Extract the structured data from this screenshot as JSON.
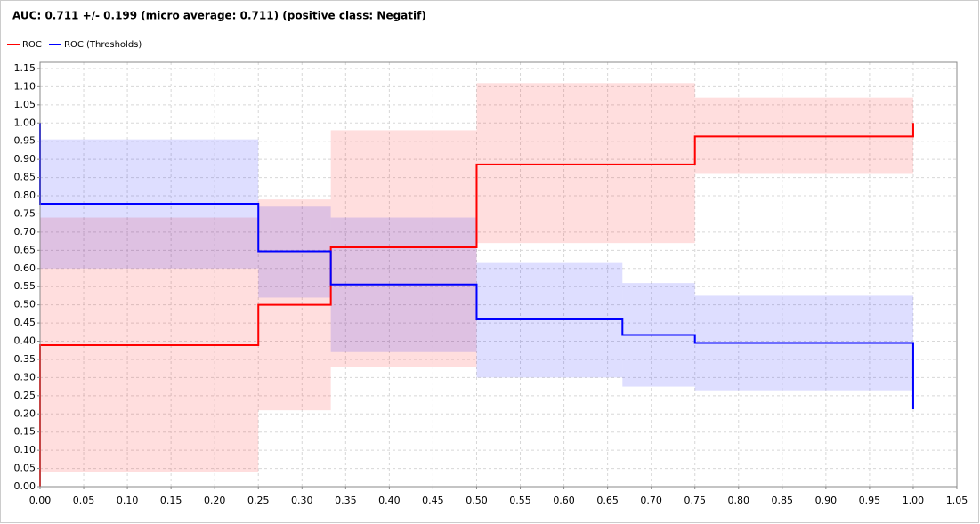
{
  "chart_data": {
    "type": "step",
    "title": "AUC: 0.711 +/- 0.199 (micro average: 0.711) (positive class: Negatif)",
    "xlim": [
      0,
      1.05
    ],
    "ylim": [
      0,
      1.167
    ],
    "grid": true,
    "xticks": [
      {
        "value": 0,
        "label": "0.00"
      },
      {
        "value": 0.05,
        "label": "0.05"
      },
      {
        "value": 0.1,
        "label": "0.10"
      },
      {
        "value": 0.15,
        "label": "0.15"
      },
      {
        "value": 0.2,
        "label": "0.20"
      },
      {
        "value": 0.25,
        "label": "0.25"
      },
      {
        "value": 0.3,
        "label": "0.30"
      },
      {
        "value": 0.35,
        "label": "0.35"
      },
      {
        "value": 0.4,
        "label": "0.40"
      },
      {
        "value": 0.45,
        "label": "0.45"
      },
      {
        "value": 0.5,
        "label": "0.50"
      },
      {
        "value": 0.55,
        "label": "0.55"
      },
      {
        "value": 0.6,
        "label": "0.60"
      },
      {
        "value": 0.65,
        "label": "0.65"
      },
      {
        "value": 0.7,
        "label": "0.70"
      },
      {
        "value": 0.75,
        "label": "0.75"
      },
      {
        "value": 0.8,
        "label": "0.80"
      },
      {
        "value": 0.85,
        "label": "0.85"
      },
      {
        "value": 0.9,
        "label": "0.90"
      },
      {
        "value": 0.95,
        "label": "0.95"
      },
      {
        "value": 1,
        "label": "1.00"
      },
      {
        "value": 1.05,
        "label": "1.05"
      }
    ],
    "yticks": [
      {
        "value": 0,
        "label": "0.00"
      },
      {
        "value": 0.05,
        "label": "0.05"
      },
      {
        "value": 0.1,
        "label": "0.10"
      },
      {
        "value": 0.15,
        "label": "0.15"
      },
      {
        "value": 0.2,
        "label": "0.20"
      },
      {
        "value": 0.25,
        "label": "0.25"
      },
      {
        "value": 0.3,
        "label": "0.30"
      },
      {
        "value": 0.35,
        "label": "0.35"
      },
      {
        "value": 0.4,
        "label": "0.40"
      },
      {
        "value": 0.45,
        "label": "0.45"
      },
      {
        "value": 0.5,
        "label": "0.50"
      },
      {
        "value": 0.55,
        "label": "0.55"
      },
      {
        "value": 0.6,
        "label": "0.60"
      },
      {
        "value": 0.65,
        "label": "0.65"
      },
      {
        "value": 0.7,
        "label": "0.70"
      },
      {
        "value": 0.75,
        "label": "0.75"
      },
      {
        "value": 0.8,
        "label": "0.80"
      },
      {
        "value": 0.85,
        "label": "0.85"
      },
      {
        "value": 0.9,
        "label": "0.90"
      },
      {
        "value": 0.95,
        "label": "0.95"
      },
      {
        "value": 1,
        "label": "1.00"
      },
      {
        "value": 1.05,
        "label": "1.05"
      },
      {
        "value": 1.1,
        "label": "1.10"
      },
      {
        "value": 1.15,
        "label": "1.15"
      }
    ],
    "series": [
      {
        "name": "ROC",
        "color": "#ff0000",
        "x": [
          0,
          0,
          0.25,
          0.25,
          0.333,
          0.333,
          0.5,
          0.5,
          0.75,
          0.75,
          1,
          1
        ],
        "values": [
          0,
          0.389,
          0.389,
          0.5,
          0.5,
          0.658,
          0.658,
          0.886,
          0.886,
          0.963,
          0.963,
          1
        ],
        "band_x": [
          0,
          0.25,
          0.333,
          0.5,
          0.75,
          1
        ],
        "band_lower": [
          0.04,
          0.21,
          0.33,
          0.67,
          0.86
        ],
        "band_upper": [
          0.74,
          0.79,
          0.98,
          1.11,
          1.07
        ]
      },
      {
        "name": "ROC (Thresholds)",
        "color": "#0000ff",
        "x": [
          0,
          0,
          0.25,
          0.25,
          0.333,
          0.333,
          0.5,
          0.5,
          0.667,
          0.667,
          0.75,
          0.75,
          1,
          1
        ],
        "values": [
          1,
          0.778,
          0.778,
          0.647,
          0.647,
          0.556,
          0.556,
          0.46,
          0.46,
          0.417,
          0.417,
          0.395,
          0.395,
          0.213
        ],
        "band_x": [
          0,
          0.25,
          0.333,
          0.5,
          0.667,
          0.75,
          1
        ],
        "band_lower": [
          0.6,
          0.52,
          0.37,
          0.3,
          0.275,
          0.265
        ],
        "band_upper": [
          0.955,
          0.77,
          0.74,
          0.615,
          0.56,
          0.525
        ]
      }
    ]
  }
}
